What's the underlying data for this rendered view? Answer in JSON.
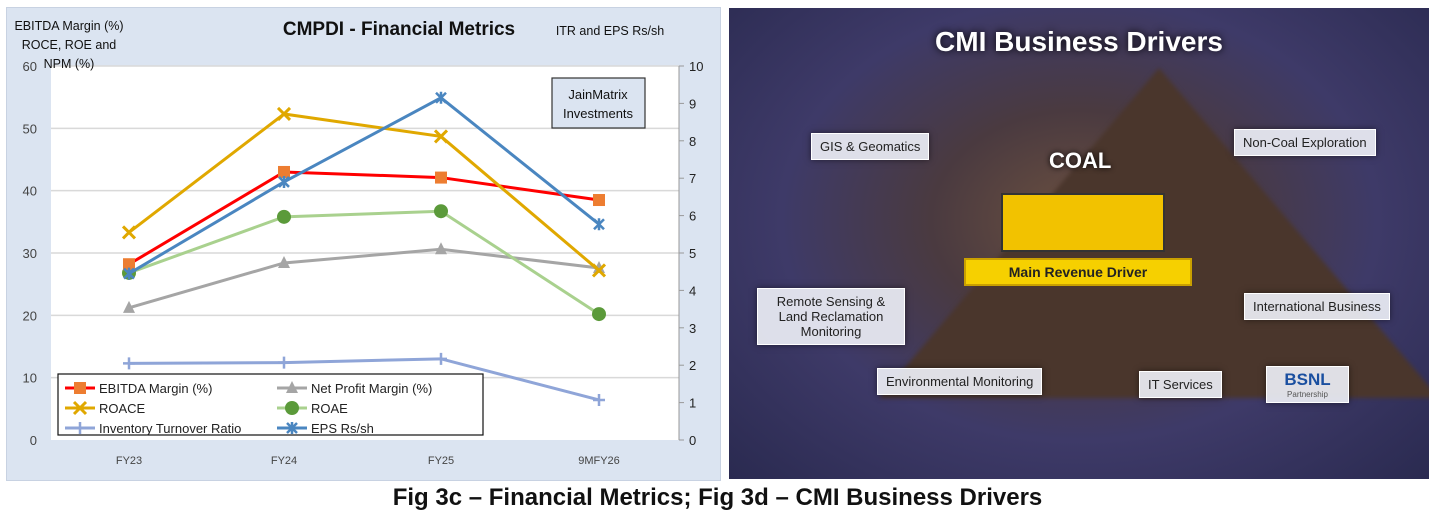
{
  "chart_data": {
    "type": "line",
    "title": "CMPDI - Financial Metrics",
    "ylabel_left": [
      "EBITDA Margin (%)",
      "ROCE, ROE and",
      "NPM  (%)"
    ],
    "ylabel_right": "ITR and EPS Rs/sh",
    "categories": [
      "FY23",
      "FY24",
      "FY25",
      "9MFY26"
    ],
    "ylim_left": [
      0,
      60
    ],
    "yticks_left": [
      0,
      10,
      20,
      30,
      40,
      50,
      60
    ],
    "ylim_right": [
      0,
      10
    ],
    "yticks_right": [
      0,
      1,
      2,
      3,
      4,
      5,
      6,
      7,
      8,
      9,
      10
    ],
    "grid": true,
    "legend_placement": "bottom-left",
    "annotation": [
      "JainMatrix",
      "Investments"
    ],
    "series": [
      {
        "name": "EBITDA Margin (%)",
        "axis": "left",
        "color": "#ff0000",
        "marker": "square",
        "marker_color": "#ed7d31",
        "values": [
          28.2,
          43.0,
          42.1,
          38.5
        ]
      },
      {
        "name": "Net Profit Margin (%)",
        "axis": "left",
        "color": "#a5a5a5",
        "marker": "triangle",
        "marker_color": "#a5a5a5",
        "values": [
          21.2,
          28.4,
          30.6,
          27.6
        ]
      },
      {
        "name": "ROACE",
        "axis": "left",
        "color": "#e0a800",
        "marker": "x",
        "marker_color": "#e0a800",
        "values": [
          33.3,
          52.3,
          48.7,
          27.2
        ]
      },
      {
        "name": "ROAE",
        "axis": "left",
        "color": "#a9d18e",
        "marker": "circle",
        "marker_color": "#5b9a3a",
        "values": [
          26.8,
          35.8,
          36.7,
          20.2
        ]
      },
      {
        "name": "Inventory Turnover Ratio",
        "axis": "right",
        "color": "#8fa5d8",
        "marker": "plus",
        "marker_color": "#8fa5d8",
        "values": [
          2.05,
          2.07,
          2.17,
          1.07
        ]
      },
      {
        "name": "EPS Rs/sh",
        "axis": "right",
        "color": "#4a86c0",
        "marker": "star",
        "marker_color": "#4a86c0",
        "values": [
          4.45,
          6.9,
          9.15,
          5.77
        ]
      }
    ]
  },
  "infographic": {
    "title": "CMI Business Drivers",
    "center": "COAL",
    "main": "Main Revenue Driver",
    "labels": {
      "gis": "GIS & Geomatics",
      "noncoal": "Non-Coal Exploration",
      "remote": "Remote Sensing & Land Reclamation Monitoring",
      "env": "Environmental Monitoring",
      "it": "IT Services",
      "intl": "International Business",
      "bsnl": "BSNL",
      "bsnl_sub": "Partnership"
    }
  },
  "caption": "Fig 3c – Financial Metrics; Fig 3d – CMI Business Drivers"
}
